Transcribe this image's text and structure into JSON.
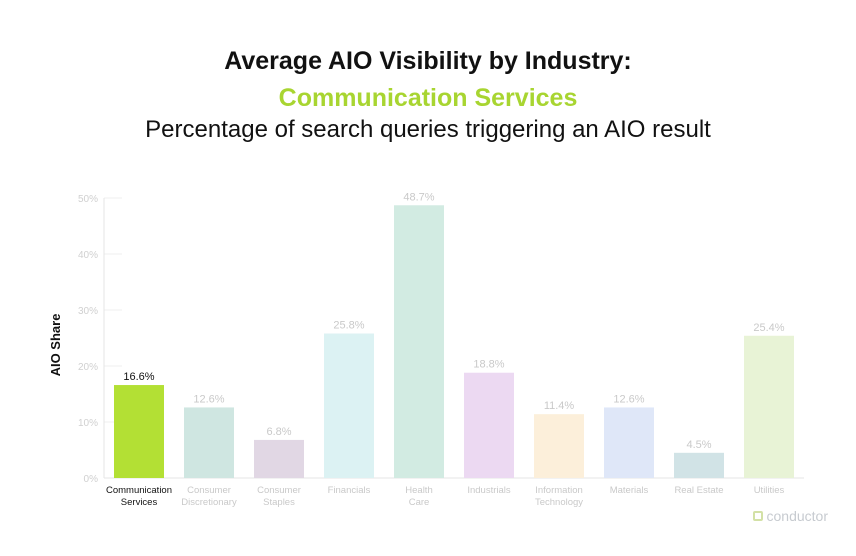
{
  "header": {
    "title": "Average AIO Visibility by Industry:",
    "subtitle": "Communication Services",
    "description": "Percentage of search queries triggering an AIO result"
  },
  "colors": {
    "accent": "#a8d531",
    "highlight_bar": "#b3e034",
    "faded_text": "#c9c9c9",
    "axis_text": "#d0d0d0",
    "dark_text": "#111111"
  },
  "brand": {
    "name": "conductor",
    "icon": "conductor-logo-icon"
  },
  "chart_data": {
    "type": "bar",
    "title": "Average AIO Visibility by Industry: Communication Services",
    "ylabel": "AIO Share",
    "xlabel": "",
    "ylim": [
      0,
      50
    ],
    "yticks": [
      "0%",
      "10%",
      "20%",
      "30%",
      "40%",
      "50%"
    ],
    "highlight": "Communication Services",
    "categories": [
      {
        "name": "Communication Services",
        "lines": [
          "Communication",
          "Services"
        ],
        "value": 16.6,
        "label": "16.6%",
        "color": "#b3e034"
      },
      {
        "name": "Consumer Discretionary",
        "lines": [
          "Consumer",
          "Discretionary"
        ],
        "value": 12.6,
        "label": "12.6%",
        "color": "#cfe6e1"
      },
      {
        "name": "Consumer Staples",
        "lines": [
          "Consumer",
          "Staples"
        ],
        "value": 6.8,
        "label": "6.8%",
        "color": "#e1d7e4"
      },
      {
        "name": "Financials",
        "lines": [
          "Financials"
        ],
        "value": 25.8,
        "label": "25.8%",
        "color": "#dcf2f3"
      },
      {
        "name": "Health Care",
        "lines": [
          "Health",
          "Care"
        ],
        "value": 48.7,
        "label": "48.7%",
        "color": "#d2ebe2"
      },
      {
        "name": "Industrials",
        "lines": [
          "Industrials"
        ],
        "value": 18.8,
        "label": "18.8%",
        "color": "#ecd9f2"
      },
      {
        "name": "Information Technology",
        "lines": [
          "Information",
          "Technology"
        ],
        "value": 11.4,
        "label": "11.4%",
        "color": "#fcefda"
      },
      {
        "name": "Materials",
        "lines": [
          "Materials"
        ],
        "value": 12.6,
        "label": "12.6%",
        "color": "#dfe7f8"
      },
      {
        "name": "Real Estate",
        "lines": [
          "Real Estate"
        ],
        "value": 4.5,
        "label": "4.5%",
        "color": "#d1e3e6"
      },
      {
        "name": "Utilities",
        "lines": [
          "Utilities"
        ],
        "value": 25.4,
        "label": "25.4%",
        "color": "#e8f3d6"
      }
    ]
  }
}
